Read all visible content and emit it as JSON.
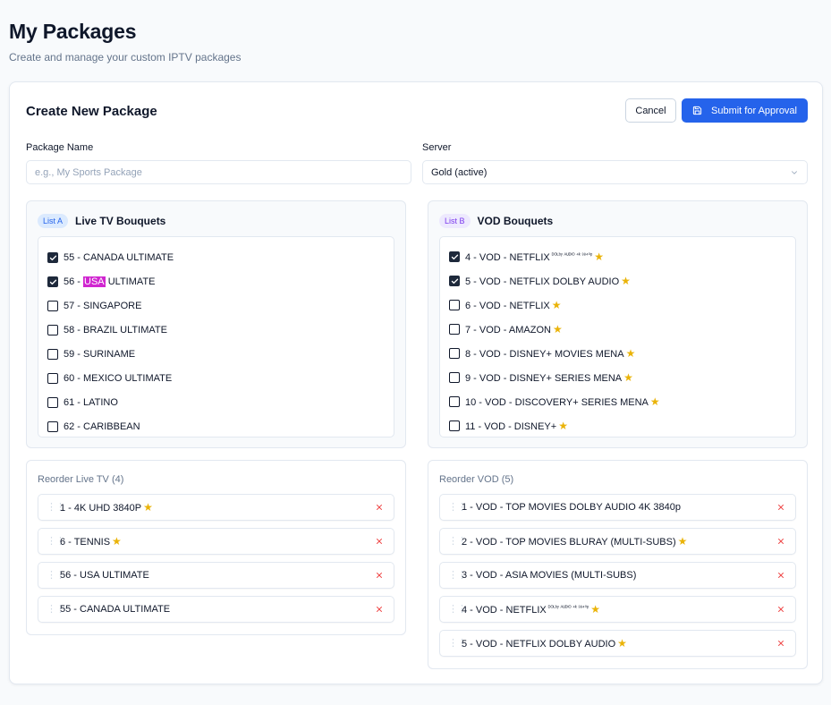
{
  "page": {
    "title": "My Packages",
    "subtitle": "Create and manage your custom IPTV packages"
  },
  "form": {
    "title": "Create New Package",
    "cancel_label": "Cancel",
    "submit_label": "Submit for Approval",
    "name_label": "Package Name",
    "name_placeholder": "e.g., My Sports Package",
    "name_value": "",
    "server_label": "Server",
    "server_value": "Gold (active)"
  },
  "live": {
    "badge": "List A",
    "title": "Live TV Bouquets",
    "items": [
      {
        "pre": "55 - CANADA ULTIMATE",
        "hl": "",
        "post": "",
        "checked": true
      },
      {
        "pre": "56 - ",
        "hl": "USA",
        "post": " ULTIMATE",
        "checked": true
      },
      {
        "pre": "57 - SINGAPORE",
        "hl": "",
        "post": "",
        "checked": false
      },
      {
        "pre": "58 - BRAZIL ULTIMATE",
        "hl": "",
        "post": "",
        "checked": false
      },
      {
        "pre": "59 - SURINAME",
        "hl": "",
        "post": "",
        "checked": false
      },
      {
        "pre": "60 - MEXICO ULTIMATE",
        "hl": "",
        "post": "",
        "checked": false
      },
      {
        "pre": "61 - LATINO",
        "hl": "",
        "post": "",
        "checked": false
      },
      {
        "pre": "62 - CARIBBEAN",
        "hl": "",
        "post": "",
        "checked": false
      }
    ]
  },
  "vod": {
    "badge": "List B",
    "title": "VOD Bouquets",
    "items": [
      {
        "text": "4 - VOD - NETFLIX",
        "sup": "ᴰᴼᴸᵇʸ ᴬᵁᴰᴵᴼ ⁴ᵏ ³⁸⁴⁰ᵖ",
        "star": "★",
        "checked": true
      },
      {
        "text": "5 - VOD - NETFLIX DOLBY AUDIO",
        "sup": "",
        "star": "★",
        "checked": true
      },
      {
        "text": "6 - VOD - NETFLIX",
        "sup": "",
        "star": "★",
        "checked": false
      },
      {
        "text": "7 - VOD - AMAZON",
        "sup": "",
        "star": "★",
        "checked": false
      },
      {
        "text": "8 - VOD - DISNEY+ MOVIES MENA",
        "sup": "",
        "star": "★",
        "checked": false
      },
      {
        "text": "9 - VOD - DISNEY+ SERIES MENA",
        "sup": "",
        "star": "★",
        "checked": false
      },
      {
        "text": "10 - VOD - DISCOVERY+ SERIES MENA",
        "sup": "",
        "star": "★",
        "checked": false
      },
      {
        "text": "11 - VOD - DISNEY+",
        "sup": "",
        "star": "★",
        "checked": false
      }
    ]
  },
  "reorder_live": {
    "title": "Reorder Live TV (4)",
    "items": [
      {
        "text": "1 - 4K UHD 3840P",
        "sup": "",
        "star": "★"
      },
      {
        "text": "6 - TENNIS",
        "sup": "",
        "star": "★"
      },
      {
        "text": "56 - USA ULTIMATE",
        "sup": "",
        "star": ""
      },
      {
        "text": "55 - CANADA ULTIMATE",
        "sup": "",
        "star": ""
      }
    ]
  },
  "reorder_vod": {
    "title": "Reorder VOD (5)",
    "items": [
      {
        "text": "1 - VOD - TOP MOVIES DOLBY AUDIO 4K 3840p",
        "sup": "",
        "star": ""
      },
      {
        "text": "2 - VOD - TOP MOVIES BLURAY (MULTI-SUBS)",
        "sup": "",
        "star": "★"
      },
      {
        "text": "3 - VOD - ASIA MOVIES (MULTI-SUBS)",
        "sup": "",
        "star": ""
      },
      {
        "text": "4 - VOD - NETFLIX",
        "sup": "ᴰᴼᴸᵇʸ ᴬᵁᴰᴵᴼ ⁴ᵏ ³⁸⁴⁰ᵖ",
        "star": "★"
      },
      {
        "text": "5 - VOD - NETFLIX DOLBY AUDIO",
        "sup": "",
        "star": "★"
      }
    ]
  },
  "colors": {
    "primary": "#2563eb",
    "highlight": "#d026d0",
    "star": "#eab308",
    "remove": "#ef4444"
  },
  "icons": [
    "save-icon",
    "chevron-down-icon",
    "checkbox-icon",
    "grip-icon",
    "close-icon",
    "star-icon"
  ]
}
